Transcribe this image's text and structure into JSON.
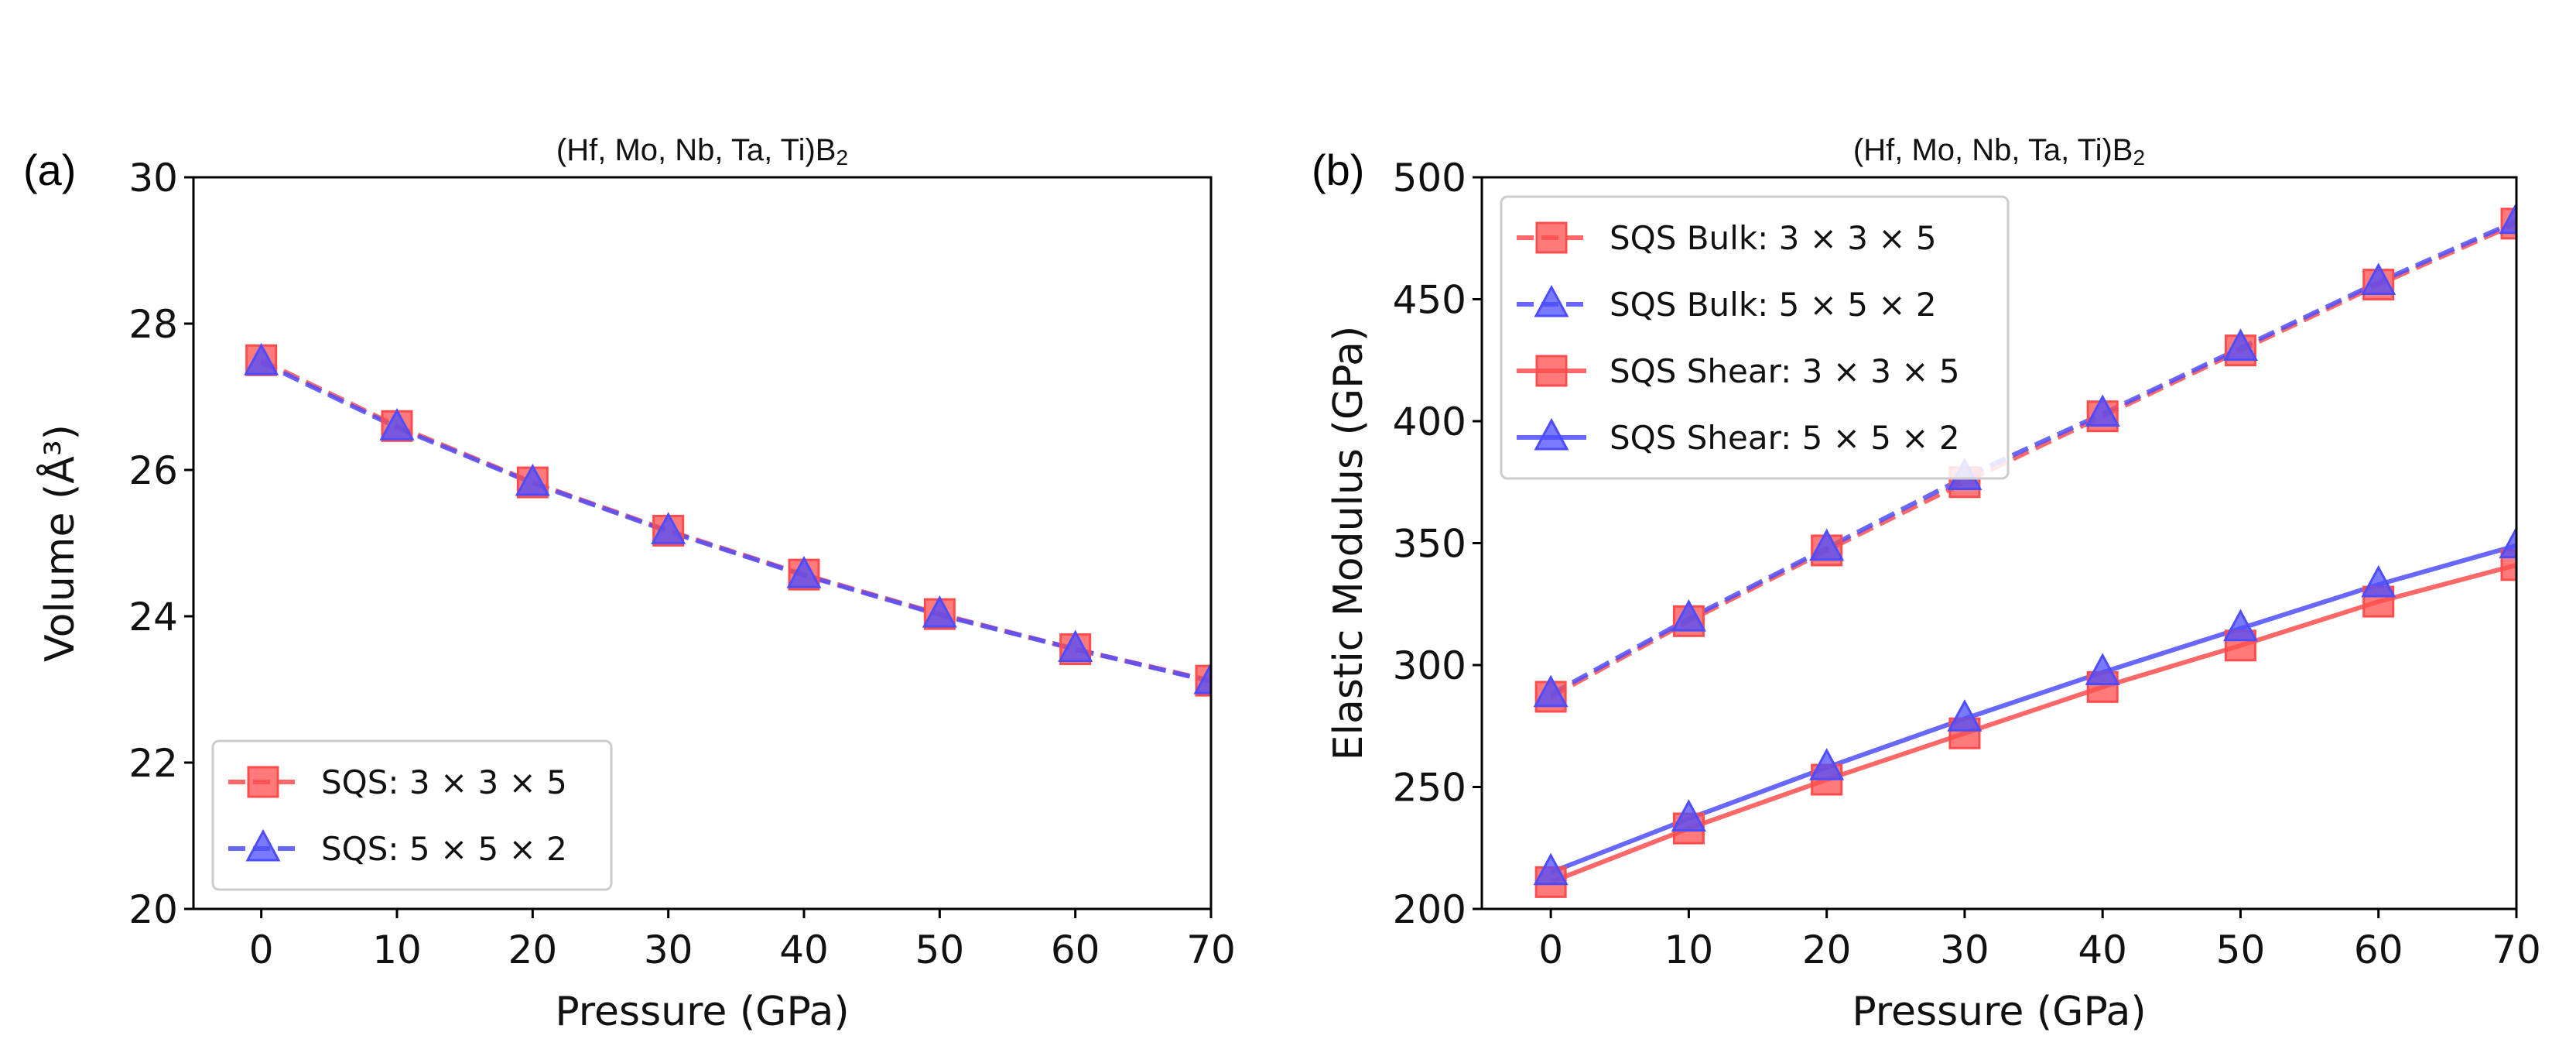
{
  "chart_data": [
    {
      "type": "line",
      "panel_label": "(a)",
      "title": "(Hf, Mo, Nb, Ta, Ti)B",
      "title_subscript": "2",
      "xlabel": "Pressure (GPa)",
      "ylabel": "Volume (Å³)",
      "xlim": [
        -5,
        70
      ],
      "ylim": [
        20,
        30
      ],
      "xticks": [
        0,
        10,
        20,
        30,
        40,
        50,
        60,
        70
      ],
      "yticks": [
        20,
        22,
        24,
        26,
        28,
        30
      ],
      "x": [
        0,
        10,
        20,
        30,
        40,
        50,
        60,
        70
      ],
      "legend_position": "lower-left",
      "series": [
        {
          "name": "SQS: 3 × 3 × 5",
          "color": "#ff4d4d",
          "marker": "square",
          "dash": true,
          "values": [
            27.5,
            26.6,
            25.83,
            25.17,
            24.57,
            24.03,
            23.55,
            23.12
          ]
        },
        {
          "name": "SQS: 5 × 5 × 2",
          "color": "#4d4dff",
          "marker": "triangle",
          "dash": true,
          "values": [
            27.47,
            26.58,
            25.82,
            25.16,
            24.56,
            24.02,
            23.55,
            23.11
          ]
        }
      ]
    },
    {
      "type": "line",
      "panel_label": "(b)",
      "title": "(Hf, Mo, Nb, Ta, Ti)B",
      "title_subscript": "2",
      "xlabel": "Pressure (GPa)",
      "ylabel": "Elastic Modulus (GPa)",
      "xlim": [
        -5,
        70
      ],
      "ylim": [
        200,
        500
      ],
      "xticks": [
        0,
        10,
        20,
        30,
        40,
        50,
        60,
        70
      ],
      "yticks": [
        200,
        250,
        300,
        350,
        400,
        450,
        500
      ],
      "x": [
        0,
        10,
        20,
        30,
        40,
        50,
        60,
        70
      ],
      "legend_position": "upper-left",
      "series": [
        {
          "name": "SQS Bulk: 3 × 3 × 5",
          "color": "#ff4d4d",
          "marker": "square",
          "dash": true,
          "values": [
            287,
            318,
            347,
            375,
            402,
            429,
            456,
            481
          ]
        },
        {
          "name": "SQS Bulk: 5 × 5 × 2",
          "color": "#4d4dff",
          "marker": "triangle",
          "dash": true,
          "values": [
            288,
            319,
            348,
            377,
            403,
            430,
            457,
            482
          ]
        },
        {
          "name": "SQS Shear: 3 × 3 × 5",
          "color": "#ff4d4d",
          "marker": "square",
          "dash": false,
          "values": [
            211,
            233,
            253,
            272,
            291,
            308,
            326,
            341
          ]
        },
        {
          "name": "SQS Shear: 5 × 5 × 2",
          "color": "#4d4dff",
          "marker": "triangle",
          "dash": false,
          "values": [
            215,
            237,
            258,
            278,
            297,
            315,
            333,
            349
          ]
        }
      ]
    }
  ]
}
